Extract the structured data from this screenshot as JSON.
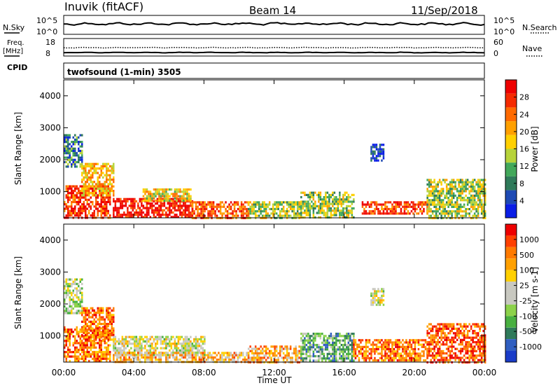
{
  "header": {
    "station": "Inuvik (fitACF)",
    "beam": "Beam 14",
    "date": "11/Sep/2018"
  },
  "strip_labels": {
    "nsky": "N.Sky",
    "nsky_ticks": [
      "10^5",
      "10^0"
    ],
    "nsearch": "N.Search",
    "nsearch_ticks": [
      "10^5",
      "10^0"
    ],
    "freq_line1": "Freq.",
    "freq_line2": "[MHz]",
    "freq_ticks": [
      "18",
      "8"
    ],
    "nave": "Nave",
    "nave_ticks": [
      "60",
      "0"
    ],
    "cpid": "CPID",
    "cpid_text": "twofsound (1-min) 3505"
  },
  "xaxis": {
    "label": "Time UT",
    "ticks": [
      "00:00",
      "04:00",
      "08:00",
      "12:00",
      "16:00",
      "20:00",
      "00:00"
    ],
    "range_hours": [
      0,
      24
    ]
  },
  "chart_data": [
    {
      "type": "heatmap",
      "name": "power",
      "ylabel": "Slant Range [km]",
      "yticks": [
        1000,
        2000,
        3000,
        4000
      ],
      "ylim": [
        180,
        4500
      ],
      "colorbar_label": "Power [dB]",
      "colorbar_ticks": [
        "28",
        "24",
        "20",
        "16",
        "12",
        "8",
        "4"
      ],
      "colorbar_colors": [
        "#0a1ee6",
        "#1e4ab4",
        "#2f7a5a",
        "#42a85a",
        "#b7d33a",
        "#ffd000",
        "#ffa000",
        "#ff6a00",
        "#f52a00",
        "#ee0000"
      ],
      "regions": [
        {
          "t": [
            0.0,
            2.6
          ],
          "r": [
            180,
            1200
          ],
          "level": 0.85
        },
        {
          "t": [
            0.0,
            1.0
          ],
          "r": [
            1800,
            2800
          ],
          "level": 0.25
        },
        {
          "t": [
            1.0,
            2.8
          ],
          "r": [
            900,
            1900
          ],
          "level": 0.6
        },
        {
          "t": [
            2.8,
            7.3
          ],
          "r": [
            180,
            800
          ],
          "level": 0.95
        },
        {
          "t": [
            4.5,
            7.2
          ],
          "r": [
            700,
            1100
          ],
          "level": 0.55
        },
        {
          "t": [
            7.3,
            10.5
          ],
          "r": [
            200,
            700
          ],
          "level": 0.8
        },
        {
          "t": [
            10.5,
            13.5
          ],
          "r": [
            200,
            700
          ],
          "level": 0.45
        },
        {
          "t": [
            13.5,
            16.5
          ],
          "r": [
            200,
            1000
          ],
          "level": 0.45
        },
        {
          "t": [
            17.0,
            20.7
          ],
          "r": [
            300,
            700
          ],
          "level": 0.85
        },
        {
          "t": [
            17.5,
            18.2
          ],
          "r": [
            2000,
            2500
          ],
          "level": 0.1
        },
        {
          "t": [
            20.7,
            24.0
          ],
          "r": [
            200,
            1400
          ],
          "level": 0.45
        }
      ]
    },
    {
      "type": "heatmap",
      "name": "velocity",
      "ylabel": "Slant Range [km]",
      "yticks": [
        1000,
        2000,
        3000,
        4000
      ],
      "ylim": [
        180,
        4500
      ],
      "colorbar_label": "Velocity [m s-1]",
      "colorbar_ticks": [
        "1000",
        "500",
        "100",
        "25",
        "-25",
        "-100",
        "-500",
        "-1000"
      ],
      "colorbar_colors": [
        "#1a3cc8",
        "#2f5ec0",
        "#2f7a5a",
        "#48b040",
        "#8cd24a",
        "#c8c8c0",
        "#c8c8c0",
        "#ffd000",
        "#ffa000",
        "#ff7a00",
        "#ff4000",
        "#ee0000"
      ],
      "regions": [
        {
          "t": [
            0.0,
            2.6
          ],
          "r": [
            200,
            1300
          ],
          "level": 0.8
        },
        {
          "t": [
            0.0,
            1.0
          ],
          "r": [
            1700,
            2800
          ],
          "level": 0.45
        },
        {
          "t": [
            1.0,
            2.8
          ],
          "r": [
            900,
            1900
          ],
          "level": 0.8
        },
        {
          "t": [
            2.8,
            8.0
          ],
          "r": [
            400,
            1000
          ],
          "level": 0.5
        },
        {
          "t": [
            2.8,
            10.5
          ],
          "r": [
            200,
            500
          ],
          "level": 0.65
        },
        {
          "t": [
            10.5,
            13.5
          ],
          "r": [
            200,
            700
          ],
          "level": 0.7
        },
        {
          "t": [
            13.5,
            16.5
          ],
          "r": [
            200,
            1100
          ],
          "level": 0.3
        },
        {
          "t": [
            16.5,
            20.7
          ],
          "r": [
            200,
            900
          ],
          "level": 0.8
        },
        {
          "t": [
            17.5,
            18.2
          ],
          "r": [
            2000,
            2500
          ],
          "level": 0.5
        },
        {
          "t": [
            20.7,
            24.0
          ],
          "r": [
            200,
            1400
          ],
          "level": 0.85
        }
      ]
    }
  ]
}
